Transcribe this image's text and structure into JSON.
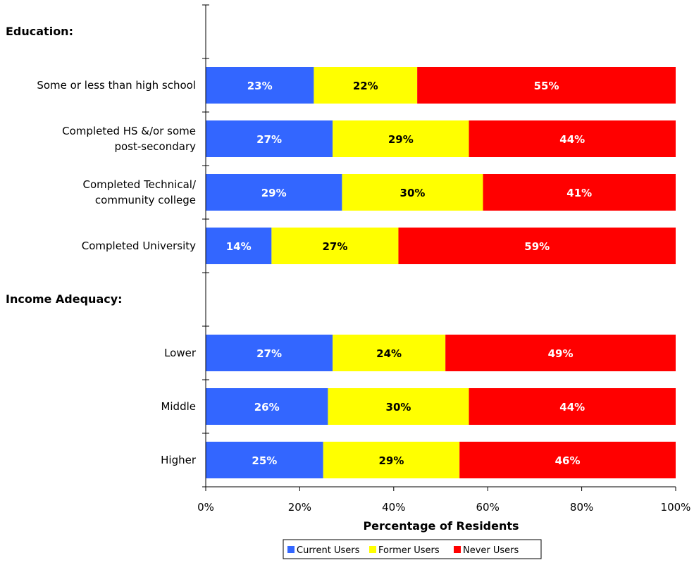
{
  "chart_data": {
    "type": "bar",
    "orientation": "horizontal",
    "stacked": true,
    "xlabel": "Percentage of Residents",
    "xlim": [
      0,
      100
    ],
    "x_ticks": [
      "0%",
      "20%",
      "40%",
      "60%",
      "80%",
      "100%"
    ],
    "grid": false,
    "legend_position": "bottom",
    "series": [
      {
        "name": "Current Users",
        "color": "#3366ff"
      },
      {
        "name": "Former Users",
        "color": "#ffff00"
      },
      {
        "name": "Never Users",
        "color": "#ff0000"
      }
    ],
    "groups": [
      {
        "label": "Education:",
        "categories": [
          {
            "label": [
              "Some or less than high school"
            ],
            "values": [
              23,
              22,
              55
            ],
            "data_labels": [
              "23%",
              "22%",
              "55%"
            ]
          },
          {
            "label": [
              "Completed HS &/or some",
              "post-secondary"
            ],
            "values": [
              27,
              29,
              44
            ],
            "data_labels": [
              "27%",
              "29%",
              "44%"
            ]
          },
          {
            "label": [
              "Completed Technical/",
              "community college"
            ],
            "values": [
              29,
              30,
              41
            ],
            "data_labels": [
              "29%",
              "30%",
              "41%"
            ]
          },
          {
            "label": [
              "Completed University"
            ],
            "values": [
              14,
              27,
              59
            ],
            "data_labels": [
              "14%",
              "27%",
              "59%"
            ]
          }
        ]
      },
      {
        "label": "Income Adequacy:",
        "categories": [
          {
            "label": [
              "Lower"
            ],
            "values": [
              27,
              24,
              49
            ],
            "data_labels": [
              "27%",
              "24%",
              "49%"
            ]
          },
          {
            "label": [
              "Middle"
            ],
            "values": [
              26,
              30,
              44
            ],
            "data_labels": [
              "26%",
              "30%",
              "44%"
            ]
          },
          {
            "label": [
              "Higher"
            ],
            "values": [
              25,
              29,
              46
            ],
            "data_labels": [
              "25%",
              "29%",
              "46%"
            ]
          }
        ]
      }
    ]
  }
}
